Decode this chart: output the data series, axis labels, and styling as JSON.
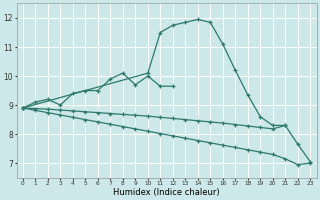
{
  "xlabel": "Humidex (Indice chaleur)",
  "bg_color": "#cce8e8",
  "grid_color": "#ffffff",
  "line_color": "#2d7a6a",
  "ylim": [
    6.5,
    12.5
  ],
  "xlim": [
    -0.5,
    23.5
  ],
  "yticks": [
    7,
    8,
    9,
    10,
    11,
    12
  ],
  "xticks": [
    0,
    1,
    2,
    3,
    4,
    5,
    6,
    7,
    8,
    9,
    10,
    11,
    12,
    13,
    14,
    15,
    16,
    17,
    18,
    19,
    20,
    21,
    22,
    23
  ],
  "line1_x": [
    0,
    1,
    2,
    3,
    4,
    5,
    6,
    7,
    8,
    9,
    10,
    11,
    12
  ],
  "line1_y": [
    8.9,
    9.1,
    9.2,
    9.0,
    9.4,
    9.5,
    9.5,
    9.9,
    10.1,
    9.7,
    10.0,
    9.65,
    9.65
  ],
  "line2_x": [
    0,
    1,
    2,
    3,
    4,
    5,
    6,
    7,
    8,
    9,
    10,
    11,
    12,
    13,
    14,
    15,
    16,
    17,
    18,
    19,
    20,
    21
  ],
  "line2_y": [
    8.9,
    8.88,
    8.86,
    8.83,
    8.8,
    8.77,
    8.74,
    8.71,
    8.68,
    8.65,
    8.62,
    8.58,
    8.54,
    8.5,
    8.46,
    8.42,
    8.38,
    8.33,
    8.28,
    8.23,
    8.18,
    8.3
  ],
  "line3_x": [
    0,
    1,
    2,
    3,
    4,
    5,
    6,
    7,
    8,
    9,
    10,
    11,
    12,
    13,
    14,
    15,
    16,
    17,
    18,
    19,
    20,
    21,
    22,
    23
  ],
  "line3_y": [
    8.9,
    8.82,
    8.74,
    8.66,
    8.58,
    8.5,
    8.42,
    8.34,
    8.26,
    8.18,
    8.1,
    8.02,
    7.94,
    7.86,
    7.78,
    7.7,
    7.62,
    7.54,
    7.46,
    7.38,
    7.3,
    7.15,
    6.95,
    7.0
  ],
  "line4_x": [
    0,
    10,
    11,
    12,
    13,
    14,
    15,
    16,
    17,
    18,
    19,
    20,
    21,
    22,
    23
  ],
  "line4_y": [
    8.9,
    10.1,
    11.5,
    11.75,
    11.85,
    11.95,
    11.85,
    11.1,
    10.2,
    9.35,
    8.6,
    8.3,
    8.3,
    7.65,
    7.05
  ]
}
